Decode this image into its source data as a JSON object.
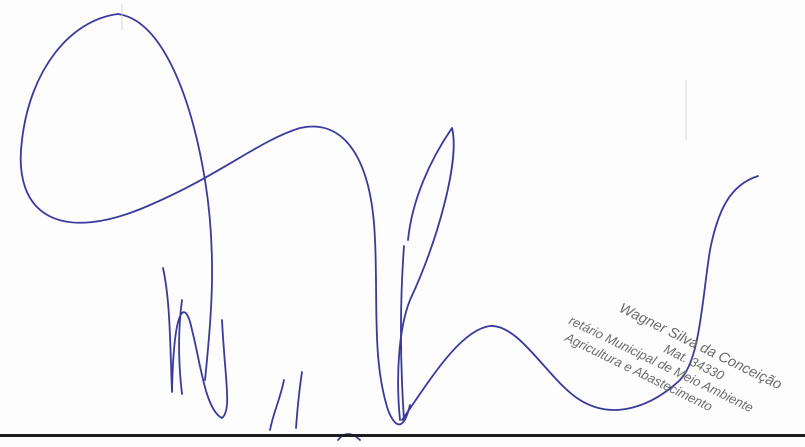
{
  "document": {
    "stamp": {
      "name": "Wagner Silva da Conceição",
      "registration": "Mat. 34330",
      "title": "retário Municipal de Meio Ambiente",
      "department": "Agricultura e Abastecimento"
    },
    "colors": {
      "ink": "#3a3a9c",
      "stamp_text": "#6b6b6b",
      "baseline": "#1c1c1c"
    }
  }
}
